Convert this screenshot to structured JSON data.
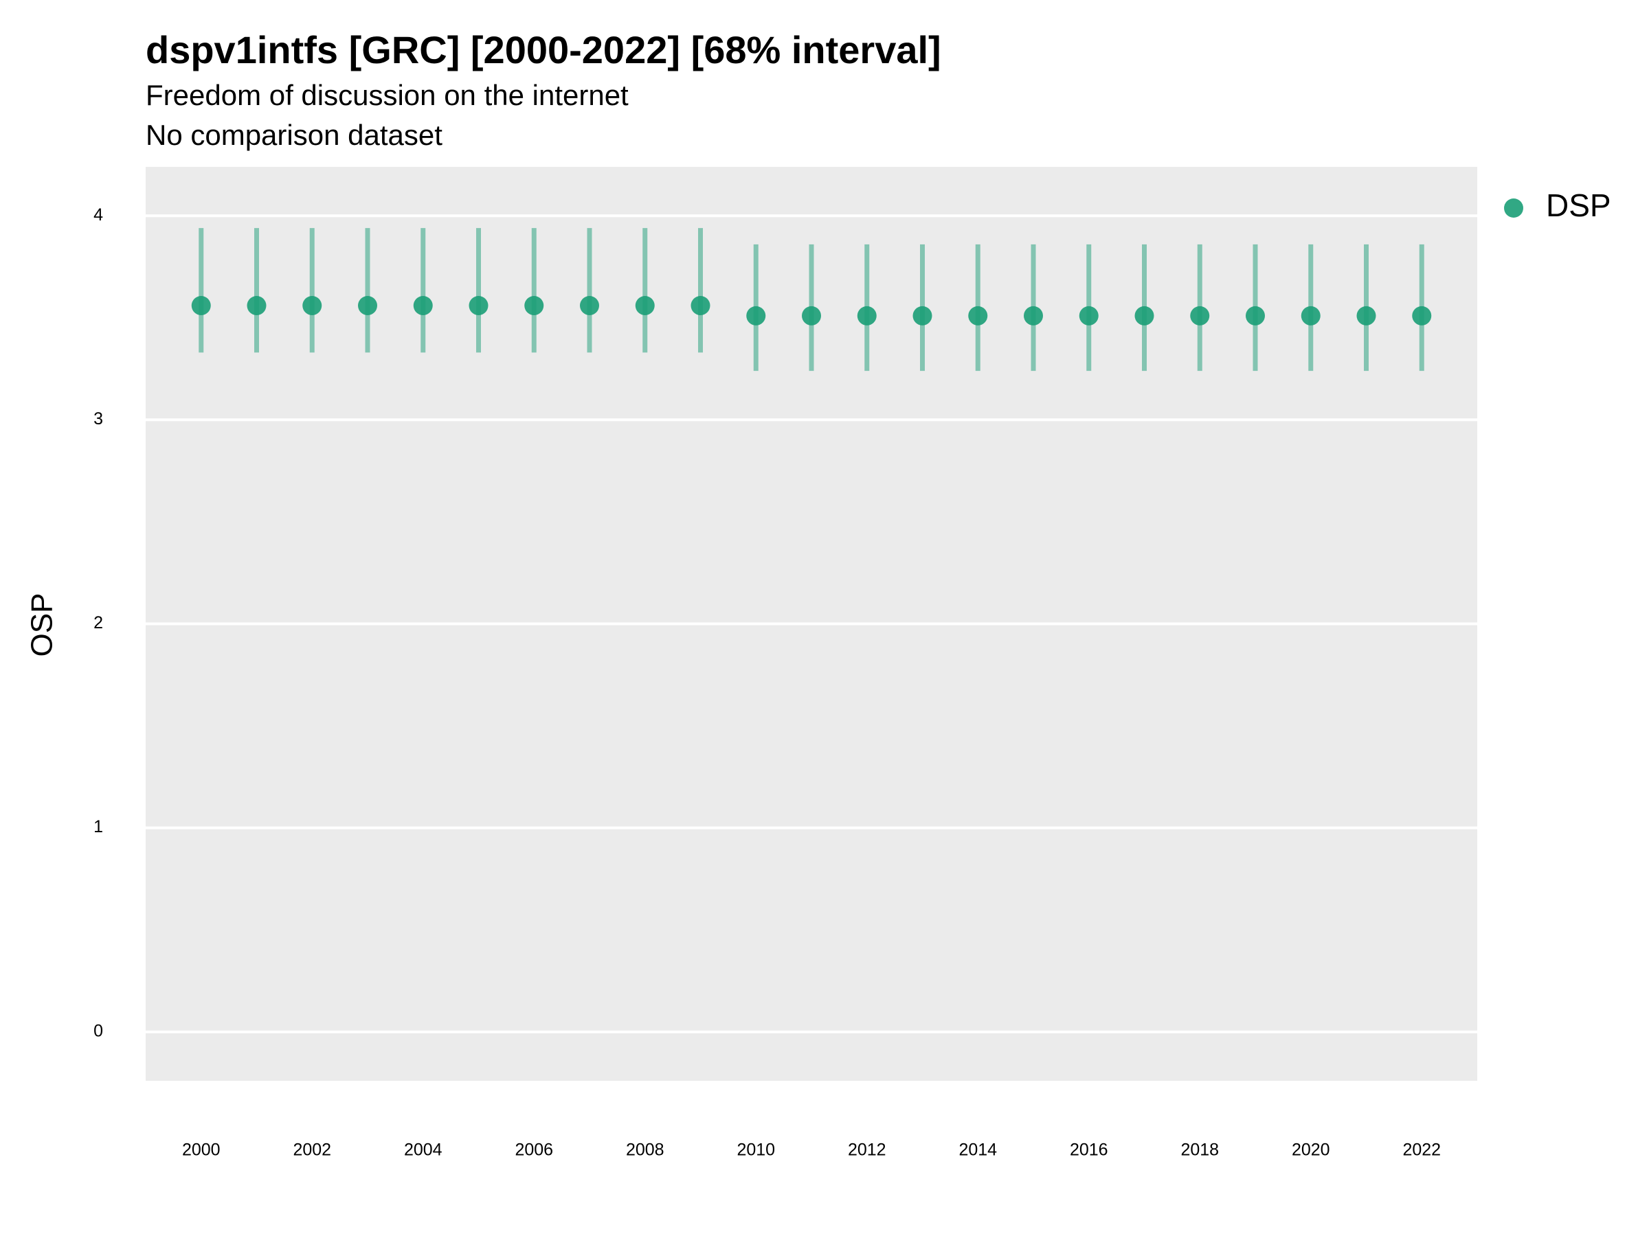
{
  "chart_data": {
    "type": "errorbar",
    "title": "dspv1intfs [GRC] [2000-2022] [68% interval]",
    "subtitle": [
      "Freedom of discussion on the internet",
      "No comparison dataset"
    ],
    "y_label": "OSP",
    "x": [
      2000,
      2001,
      2002,
      2003,
      2004,
      2005,
      2006,
      2007,
      2008,
      2009,
      2010,
      2011,
      2012,
      2013,
      2014,
      2015,
      2016,
      2017,
      2018,
      2019,
      2020,
      2021,
      2022
    ],
    "series": [
      {
        "name": "DSP",
        "color": "#1b9e77",
        "values": [
          3.56,
          3.56,
          3.56,
          3.56,
          3.56,
          3.56,
          3.56,
          3.56,
          3.56,
          3.56,
          3.51,
          3.51,
          3.51,
          3.51,
          3.51,
          3.51,
          3.51,
          3.51,
          3.51,
          3.51,
          3.51,
          3.51,
          3.51
        ],
        "lower": [
          3.33,
          3.33,
          3.33,
          3.33,
          3.33,
          3.33,
          3.33,
          3.33,
          3.33,
          3.33,
          3.24,
          3.24,
          3.24,
          3.24,
          3.24,
          3.24,
          3.24,
          3.24,
          3.24,
          3.24,
          3.24,
          3.24,
          3.24
        ],
        "upper": [
          3.94,
          3.94,
          3.94,
          3.94,
          3.94,
          3.94,
          3.94,
          3.94,
          3.94,
          3.94,
          3.86,
          3.86,
          3.86,
          3.86,
          3.86,
          3.86,
          3.86,
          3.86,
          3.86,
          3.86,
          3.86,
          3.86,
          3.86
        ]
      }
    ],
    "xlim": [
      1999,
      2023
    ],
    "xticks": [
      2000,
      2002,
      2004,
      2006,
      2008,
      2010,
      2012,
      2014,
      2016,
      2018,
      2020,
      2022
    ],
    "ylim": [
      -0.24,
      4.24
    ],
    "yticks": [
      0,
      1,
      2,
      3,
      4
    ],
    "grid": true,
    "legend": "right"
  }
}
